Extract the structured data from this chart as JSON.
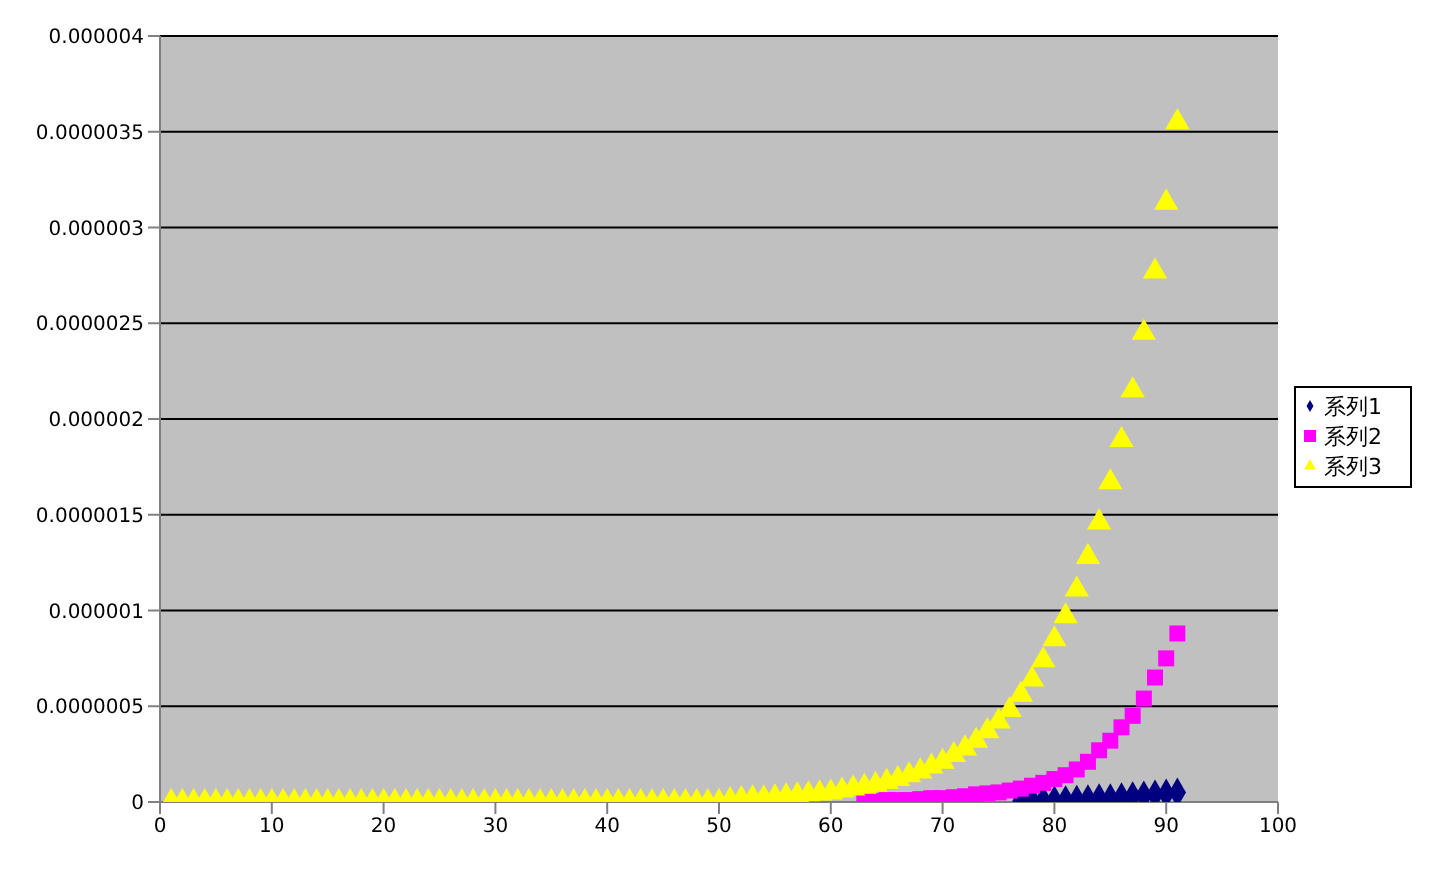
{
  "chart_data": {
    "type": "scatter",
    "x": [
      1,
      2,
      3,
      4,
      5,
      6,
      7,
      8,
      9,
      10,
      11,
      12,
      13,
      14,
      15,
      16,
      17,
      18,
      19,
      20,
      21,
      22,
      23,
      24,
      25,
      26,
      27,
      28,
      29,
      30,
      31,
      32,
      33,
      34,
      35,
      36,
      37,
      38,
      39,
      40,
      41,
      42,
      43,
      44,
      45,
      46,
      47,
      48,
      49,
      50,
      51,
      52,
      53,
      54,
      55,
      56,
      57,
      58,
      59,
      60,
      61,
      62,
      63,
      64,
      65,
      66,
      67,
      68,
      69,
      70,
      71,
      72,
      73,
      74,
      75,
      76,
      77,
      78,
      79,
      80,
      81,
      82,
      83,
      84,
      85,
      86,
      87,
      88,
      89,
      90,
      91
    ],
    "series": [
      {
        "name": "系列1",
        "color": "#000080",
        "marker": "diamond",
        "values": [
          null,
          null,
          null,
          null,
          null,
          null,
          null,
          null,
          null,
          null,
          null,
          null,
          null,
          null,
          null,
          null,
          null,
          null,
          null,
          null,
          null,
          null,
          null,
          null,
          null,
          null,
          null,
          null,
          null,
          null,
          null,
          null,
          null,
          null,
          null,
          null,
          null,
          null,
          null,
          null,
          null,
          null,
          null,
          null,
          null,
          null,
          null,
          null,
          null,
          null,
          null,
          null,
          null,
          null,
          null,
          null,
          null,
          null,
          null,
          null,
          null,
          null,
          null,
          null,
          null,
          null,
          null,
          null,
          null,
          null,
          null,
          null,
          null,
          null,
          null,
          null,
          5e-09,
          6e-09,
          7e-09,
          8e-09,
          1e-08,
          1.2e-08,
          1.5e-08,
          2e-08,
          2e-08,
          2.5e-08,
          3e-08,
          3.5e-08,
          4e-08,
          4.5e-08,
          5e-08
        ]
      },
      {
        "name": "系列2",
        "color": "#ff00ff",
        "marker": "square",
        "values": [
          null,
          null,
          null,
          null,
          null,
          null,
          null,
          null,
          null,
          null,
          null,
          null,
          null,
          null,
          null,
          null,
          null,
          null,
          null,
          null,
          null,
          null,
          null,
          null,
          null,
          null,
          null,
          null,
          null,
          null,
          null,
          null,
          null,
          null,
          null,
          null,
          null,
          null,
          null,
          null,
          null,
          null,
          null,
          null,
          null,
          null,
          null,
          null,
          null,
          null,
          null,
          null,
          null,
          null,
          null,
          null,
          null,
          null,
          null,
          null,
          null,
          null,
          5e-09,
          5e-09,
          1e-08,
          1e-08,
          1e-08,
          1.5e-08,
          2e-08,
          2e-08,
          2.5e-08,
          3e-08,
          4e-08,
          4.5e-08,
          5e-08,
          6e-08,
          7e-08,
          8.5e-08,
          1e-07,
          1.2e-07,
          1.4e-07,
          1.7e-07,
          2.1e-07,
          2.7e-07,
          3.2e-07,
          3.9e-07,
          4.5e-07,
          5.4e-07,
          6.5e-07,
          7.5e-07,
          8.8e-07
        ]
      },
      {
        "name": "系列3",
        "color": "#ffff00",
        "marker": "triangle",
        "values": [
          0,
          0,
          0,
          0,
          0,
          0,
          0,
          0,
          0,
          0,
          0,
          0,
          0,
          0,
          0,
          0,
          0,
          0,
          0,
          0,
          0,
          0,
          0,
          0,
          0,
          0,
          0,
          0,
          0,
          0,
          0,
          0,
          0,
          0,
          0,
          0,
          0,
          0,
          0,
          0,
          0,
          0,
          0,
          0,
          0,
          0,
          0,
          0,
          0,
          0,
          1e-08,
          1.5e-08,
          2e-08,
          2e-08,
          2.5e-08,
          3e-08,
          3.5e-08,
          4e-08,
          4.5e-08,
          5e-08,
          6e-08,
          7e-08,
          8e-08,
          9e-08,
          1.05e-07,
          1.2e-07,
          1.4e-07,
          1.6e-07,
          1.85e-07,
          2.1e-07,
          2.45e-07,
          2.8e-07,
          3.2e-07,
          3.7e-07,
          4.2e-07,
          4.8e-07,
          5.6e-07,
          6.4e-07,
          7.4e-07,
          8.5e-07,
          9.7e-07,
          1.11e-06,
          1.28e-06,
          1.46e-06,
          1.67e-06,
          1.89e-06,
          2.15e-06,
          2.45e-06,
          2.77e-06,
          3.13e-06,
          3.55e-06
        ]
      }
    ],
    "xlim": [
      0,
      100
    ],
    "xticks": [
      0,
      10,
      20,
      30,
      40,
      50,
      60,
      70,
      80,
      90,
      100
    ],
    "ylim": [
      0,
      4e-06
    ],
    "yticks": [
      0,
      {
        "value": 5e-07,
        "label": "0.0000005"
      },
      {
        "value": 1e-06,
        "label": "0.000001"
      },
      {
        "value": 1.5e-06,
        "label": "0.0000015"
      },
      {
        "value": 2e-06,
        "label": "0.000002"
      },
      {
        "value": 2.5e-06,
        "label": "0.0000025"
      },
      {
        "value": 3e-06,
        "label": "0.000003"
      },
      {
        "value": 3.5e-06,
        "label": "0.0000035"
      },
      {
        "value": 4e-06,
        "label": "0.000004"
      }
    ],
    "grid": "y",
    "legend": "right"
  }
}
